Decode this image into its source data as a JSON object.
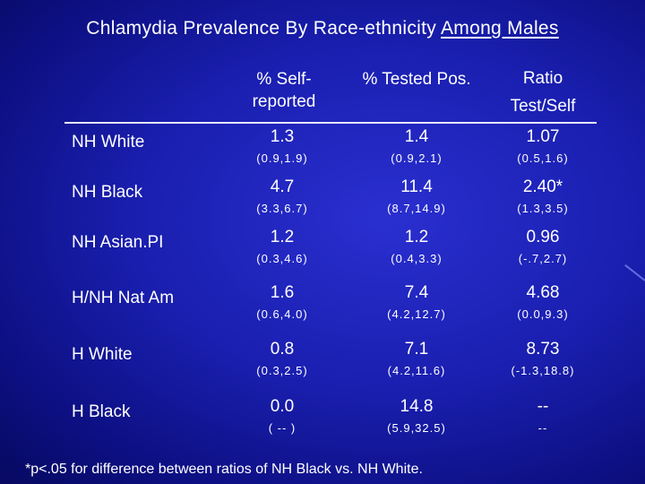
{
  "title": {
    "prefix": "Chlamydia Prevalence By Race-ethnicity ",
    "underlined": "Among Males"
  },
  "columns": [
    {
      "line1": "% Self-",
      "line2": "reported"
    },
    {
      "line1": "% Tested Pos.",
      "line2": ""
    },
    {
      "line1": "Ratio",
      "line2": "Test/Self"
    }
  ],
  "rows": [
    {
      "label": "NH White",
      "values": [
        "1.3",
        "1.4",
        "1.07"
      ],
      "cis": [
        "(0.9,1.9)",
        "(0.9,2.1)",
        "(0.5,1.6)"
      ]
    },
    {
      "label": "NH Black",
      "values": [
        "4.7",
        "11.4",
        "2.40*"
      ],
      "cis": [
        "(3.3,6.7)",
        "(8.7,14.9)",
        "(1.3,3.5)"
      ]
    },
    {
      "label": "NH Asian.PI",
      "values": [
        "1.2",
        "1.2",
        "0.96"
      ],
      "cis": [
        "(0.3,4.6)",
        "(0.4,3.3)",
        "(-.7,2.7)"
      ]
    },
    {
      "label": "H/NH Nat Am",
      "values": [
        "1.6",
        "7.4",
        "4.68"
      ],
      "cis": [
        "(0.6,4.0)",
        "(4.2,12.7)",
        "(0.0,9.3)"
      ]
    },
    {
      "label": "H White",
      "values": [
        "0.8",
        "7.1",
        "8.73"
      ],
      "cis": [
        "(0.3,2.5)",
        "(4.2,11.6)",
        "(-1.3,18.8)"
      ]
    },
    {
      "label": "H Black",
      "values": [
        "0.0",
        "14.8",
        "--"
      ],
      "cis": [
        "( -- )",
        "(5.9,32.5)",
        "--"
      ]
    }
  ],
  "footnote": "*p<.05 for difference between ratios of NH Black vs. NH White."
}
